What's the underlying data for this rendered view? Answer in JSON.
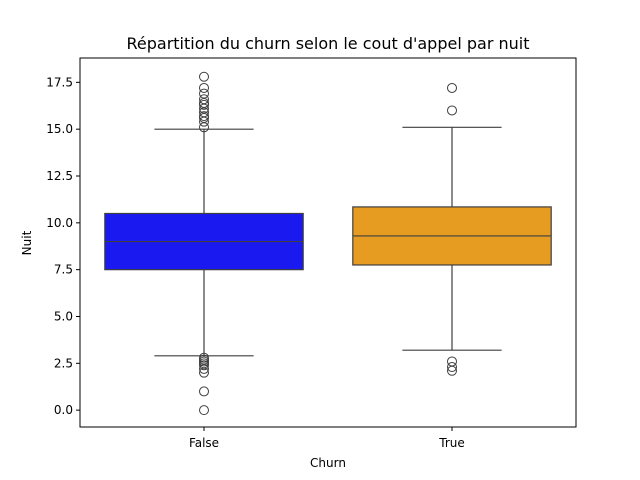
{
  "chart_data": {
    "type": "box",
    "title": "Répartition du churn selon le cout d'appel par nuit",
    "xlabel": "Churn",
    "ylabel": "Nuit",
    "categories": [
      "False",
      "True"
    ],
    "ylim": [
      -0.9,
      18.8
    ],
    "yticks": [
      0.0,
      2.5,
      5.0,
      7.5,
      10.0,
      12.5,
      15.0,
      17.5
    ],
    "ytick_labels": [
      "0.0",
      "2.5",
      "5.0",
      "7.5",
      "10.0",
      "12.5",
      "15.0",
      "17.5"
    ],
    "grid": false,
    "boxes": [
      {
        "category": "False",
        "color": "#1a1af0",
        "q1": 7.5,
        "median": 9.0,
        "q3": 10.5,
        "whisker_low": 2.9,
        "whisker_high": 15.0,
        "outliers": [
          15.1,
          15.4,
          15.6,
          15.7,
          15.9,
          16.1,
          16.3,
          16.4,
          16.6,
          16.9,
          17.2,
          17.8,
          2.8,
          2.7,
          2.6,
          2.5,
          2.4,
          2.2,
          2.0,
          1.0,
          0.0
        ]
      },
      {
        "category": "True",
        "color": "#e69c20",
        "q1": 7.75,
        "median": 9.3,
        "q3": 10.85,
        "whisker_low": 3.2,
        "whisker_high": 15.1,
        "outliers": [
          17.2,
          16.0,
          2.6,
          2.3,
          2.1
        ]
      }
    ]
  }
}
